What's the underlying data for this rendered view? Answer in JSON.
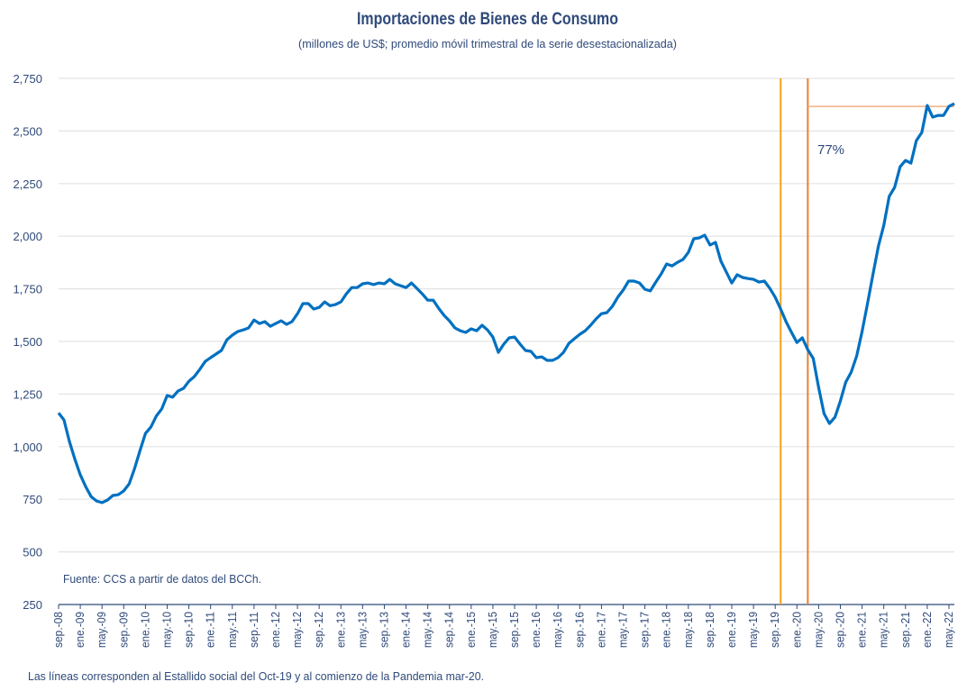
{
  "chart_data": {
    "type": "line",
    "title": "Importaciones de Bienes de Consumo",
    "subtitle": "(millones de US$; promedio móvil trimestral de la serie desestacionalizada)",
    "source": "Fuente: CCS a partir de datos del BCCh.",
    "footnote": "Las líneas corresponden al Estallido social del Oct-19 y al comienzo de la Pandemia mar-20.",
    "xlabel": "",
    "ylabel": "",
    "ylim": [
      250,
      2750
    ],
    "yticks": [
      "250",
      "500",
      "750",
      "1,000",
      "1,250",
      "1,500",
      "1,750",
      "2,000",
      "2,250",
      "2,500",
      "2,750"
    ],
    "ytick_values": [
      250,
      500,
      750,
      1000,
      1250,
      1500,
      1750,
      2000,
      2250,
      2500,
      2750
    ],
    "x_start": "sep.-08",
    "x_end": "may.-22",
    "xtick_every_months": 4,
    "xticks": [
      "sep.-08",
      "ene.-09",
      "may.-09",
      "sep.-09",
      "ene.-10",
      "may.-10",
      "sep.-10",
      "ene.-11",
      "may.-11",
      "sep.-11",
      "ene.-12",
      "may.-12",
      "sep.-12",
      "ene.-13",
      "may.-13",
      "sep.-13",
      "ene.-14",
      "may.-14",
      "sep.-14",
      "ene.-15",
      "may.-15",
      "sep.-15",
      "ene.-16",
      "may.-16",
      "sep.-16",
      "ene.-17",
      "may.-17",
      "sep.-17",
      "ene.-18",
      "may.-18",
      "sep.-18",
      "ene.-19",
      "may.-19",
      "sep.-19",
      "ene.-20",
      "may.-20",
      "sep.-20",
      "ene.-21",
      "may.-21",
      "sep.-21",
      "ene.-22",
      "may.-22"
    ],
    "grid": true,
    "series": [
      {
        "name": "Importaciones de Bienes de Consumo",
        "color": "#0070C0",
        "values": [
          1160,
          1127,
          1025,
          940,
          866,
          810,
          763,
          742,
          734,
          746,
          768,
          772,
          790,
          823,
          896,
          982,
          1063,
          1093,
          1145,
          1180,
          1243,
          1235,
          1264,
          1277,
          1311,
          1333,
          1367,
          1405,
          1423,
          1440,
          1457,
          1508,
          1530,
          1547,
          1555,
          1564,
          1602,
          1585,
          1594,
          1572,
          1585,
          1598,
          1581,
          1594,
          1632,
          1680,
          1680,
          1654,
          1662,
          1688,
          1670,
          1675,
          1688,
          1726,
          1756,
          1756,
          1774,
          1778,
          1770,
          1778,
          1774,
          1795,
          1774,
          1765,
          1756,
          1778,
          1752,
          1726,
          1696,
          1696,
          1658,
          1624,
          1598,
          1564,
          1551,
          1543,
          1560,
          1551,
          1577,
          1555,
          1521,
          1448,
          1487,
          1517,
          1521,
          1487,
          1457,
          1453,
          1423,
          1427,
          1410,
          1410,
          1423,
          1448,
          1491,
          1513,
          1534,
          1551,
          1577,
          1607,
          1632,
          1637,
          1667,
          1710,
          1744,
          1787,
          1787,
          1778,
          1748,
          1740,
          1782,
          1821,
          1868,
          1859,
          1876,
          1889,
          1923,
          1988,
          1992,
          2005,
          1958,
          1971,
          1881,
          1829,
          1778,
          1817,
          1804,
          1799,
          1795,
          1782,
          1787,
          1752,
          1710,
          1654,
          1594,
          1543,
          1495,
          1517,
          1461,
          1419,
          1281,
          1157,
          1110,
          1140,
          1217,
          1307,
          1354,
          1431,
          1547,
          1680,
          1817,
          1953,
          2052,
          2189,
          2232,
          2330,
          2360,
          2347,
          2454,
          2493,
          2621,
          2566,
          2574,
          2574,
          2617,
          2630
        ]
      }
    ],
    "event_lines": [
      {
        "label": "Oct-19",
        "month_index": 133,
        "color": "#F5A31A"
      },
      {
        "label": "mar-20",
        "month_index": 138,
        "color": "#ED7D31"
      }
    ],
    "reference_line": {
      "value": 2617,
      "from_month_index": 138,
      "color": "#F4B183"
    },
    "annotation": "77%"
  }
}
